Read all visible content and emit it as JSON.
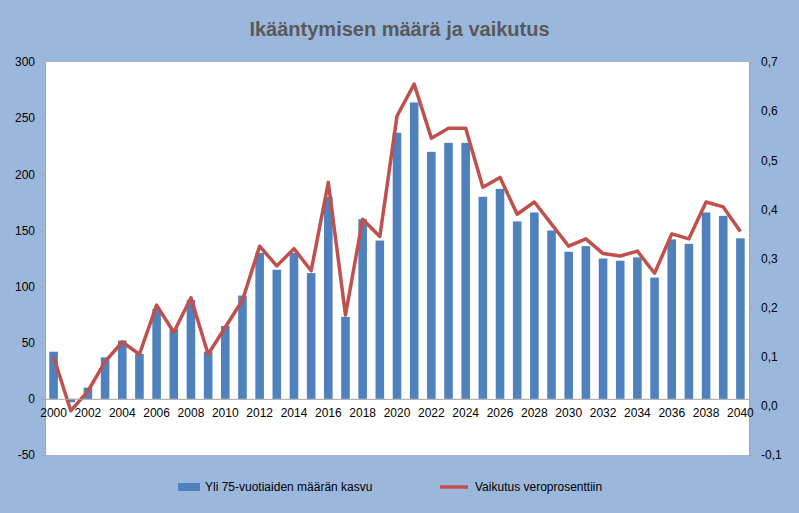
{
  "chart_data": {
    "type": "bar",
    "title": "Ikääntymisen määrä ja vaikutus",
    "categories": [
      "2000",
      null,
      "2002",
      null,
      "2004",
      null,
      "2006",
      null,
      "2008",
      null,
      "2010",
      null,
      "2012",
      null,
      "2014",
      null,
      "2016",
      null,
      "2018",
      null,
      "2020",
      null,
      "2022",
      null,
      "2024",
      null,
      "2026",
      null,
      "2028",
      null,
      "2030",
      null,
      "2032",
      null,
      "2034",
      null,
      "2036",
      null,
      "2038",
      null,
      "2040"
    ],
    "series": [
      {
        "name": "Yli 75-vuotiaiden määrän kasvu",
        "type": "bar",
        "color": "#4f81bd",
        "values": [
          42,
          -3,
          10,
          37,
          52,
          40,
          80,
          62,
          88,
          42,
          65,
          92,
          130,
          115,
          130,
          112,
          180,
          73,
          160,
          141,
          237,
          264,
          220,
          228,
          228,
          180,
          187,
          158,
          166,
          150,
          131,
          136,
          125,
          123,
          126,
          108,
          142,
          138,
          166,
          163,
          143
        ]
      },
      {
        "name": "Vaikutus veroprosenttiin",
        "type": "line",
        "color": "#c0504d",
        "axis": "y2",
        "values": [
          0.1,
          -0.01,
          0.03,
          0.09,
          0.13,
          0.105,
          0.205,
          0.15,
          0.22,
          0.105,
          0.16,
          0.215,
          0.325,
          0.285,
          0.32,
          0.275,
          0.455,
          0.185,
          0.38,
          0.345,
          0.59,
          0.655,
          0.545,
          0.565,
          0.565,
          0.445,
          0.465,
          0.39,
          0.415,
          0.37,
          0.325,
          0.34,
          0.31,
          0.305,
          0.315,
          0.27,
          0.35,
          0.34,
          0.415,
          0.405,
          0.355
        ]
      }
    ],
    "ylim": [
      -50,
      300
    ],
    "yticks": [
      -50,
      0,
      50,
      100,
      150,
      200,
      250,
      300
    ],
    "y2lim": [
      -0.1,
      0.7
    ],
    "y2ticks": [
      {
        "value": -0.1,
        "label": "-0,1"
      },
      {
        "value": 0,
        "label": "0,0"
      },
      {
        "value": 0.1,
        "label": "0,1"
      },
      {
        "value": 0.2,
        "label": "0,2"
      },
      {
        "value": 0.3,
        "label": "0,3"
      },
      {
        "value": 0.4,
        "label": "0,4"
      },
      {
        "value": 0.5,
        "label": "0,5"
      },
      {
        "value": 0.6,
        "label": "0,6"
      },
      {
        "value": 0.7,
        "label": "0,7"
      }
    ],
    "grid": false,
    "legend": "bottom"
  }
}
